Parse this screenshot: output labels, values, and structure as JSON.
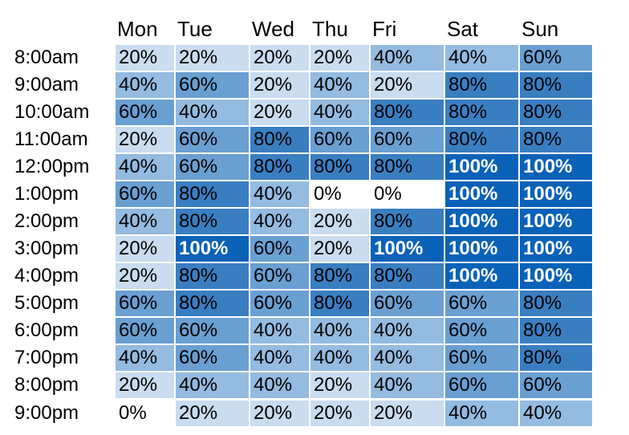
{
  "chart_data": {
    "type": "heatmap",
    "days": [
      "Mon",
      "Tue",
      "Wed",
      "Thu",
      "Fri",
      "Sat",
      "Sun"
    ],
    "times": [
      "8:00am",
      "9:00am",
      "10:00am",
      "11:00am",
      "12:00pm",
      "1:00pm",
      "2:00pm",
      "3:00pm",
      "4:00pm",
      "5:00pm",
      "6:00pm",
      "7:00pm",
      "8:00pm",
      "9:00pm"
    ],
    "values": [
      [
        20,
        20,
        20,
        20,
        40,
        40,
        60
      ],
      [
        40,
        60,
        20,
        40,
        20,
        80,
        80
      ],
      [
        60,
        40,
        20,
        40,
        80,
        80,
        80
      ],
      [
        20,
        60,
        80,
        60,
        60,
        80,
        80
      ],
      [
        40,
        60,
        80,
        80,
        80,
        100,
        100
      ],
      [
        60,
        80,
        40,
        0,
        0,
        100,
        100
      ],
      [
        40,
        80,
        40,
        20,
        80,
        100,
        100
      ],
      [
        20,
        100,
        60,
        20,
        100,
        100,
        100
      ],
      [
        20,
        80,
        60,
        80,
        80,
        100,
        100
      ],
      [
        60,
        80,
        60,
        80,
        60,
        60,
        80
      ],
      [
        60,
        60,
        40,
        40,
        40,
        60,
        80
      ],
      [
        40,
        60,
        40,
        40,
        40,
        60,
        80
      ],
      [
        20,
        40,
        40,
        20,
        40,
        60,
        60
      ],
      [
        0,
        20,
        20,
        20,
        20,
        40,
        40
      ]
    ],
    "value_suffix": "%",
    "colors": {
      "0": "#ffffff",
      "20": "#c9dcf0",
      "40": "#94bbe0",
      "60": "#6a9fd2",
      "80": "#3a7ec2",
      "100": "#0a62b8"
    }
  }
}
